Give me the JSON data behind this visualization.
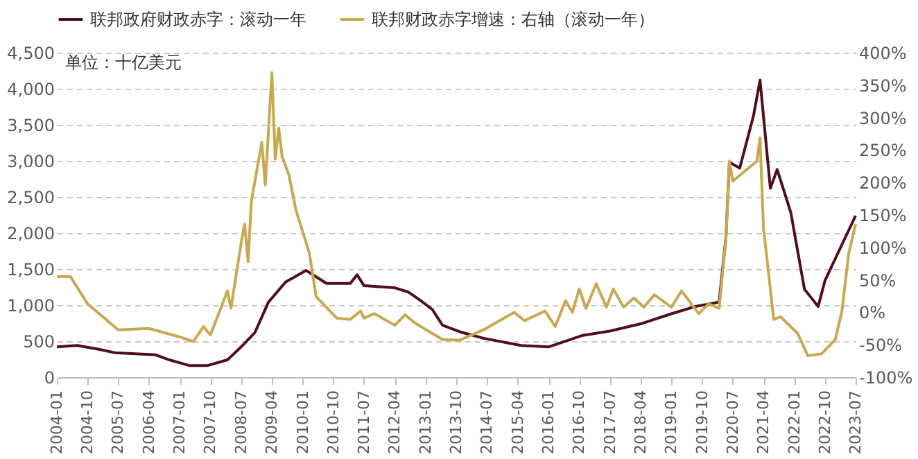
{
  "chart_data": {
    "type": "line",
    "annotations": [
      "单位：十亿美元"
    ],
    "xlim": [
      "2004-01",
      "2023-07"
    ],
    "xticks": [
      "2004-01",
      "2004-10",
      "2005-07",
      "2006-04",
      "2007-01",
      "2007-10",
      "2008-07",
      "2009-04",
      "2010-01",
      "2010-10",
      "2011-07",
      "2012-04",
      "2013-01",
      "2013-10",
      "2014-07",
      "2015-04",
      "2016-01",
      "2016-10",
      "2017-07",
      "2018-04",
      "2019-01",
      "2019-10",
      "2020-07",
      "2021-04",
      "2022-01",
      "2022-10",
      "2023-07"
    ],
    "ylim": [
      0,
      4500
    ],
    "yticks": [
      0,
      500,
      {
        "value": 1000,
        "label": "1,000"
      },
      {
        "value": 1500,
        "label": "1,500"
      },
      {
        "value": 2000,
        "label": "2,000"
      },
      {
        "value": 2500,
        "label": "2,500"
      },
      {
        "value": 3000,
        "label": "3,000"
      },
      {
        "value": 3500,
        "label": "3,500"
      },
      {
        "value": 4000,
        "label": "4,000"
      },
      {
        "value": 4500,
        "label": "4,500"
      }
    ],
    "y2lim": [
      -100,
      400
    ],
    "y2ticks": [
      {
        "value": -100,
        "label": "-100%"
      },
      {
        "value": -50,
        "label": "-50%"
      },
      {
        "value": 0,
        "label": "0%"
      },
      {
        "value": 50,
        "label": "50%"
      },
      {
        "value": 100,
        "label": "100%"
      },
      {
        "value": 150,
        "label": "150%"
      },
      {
        "value": 200,
        "label": "200%"
      },
      {
        "value": 250,
        "label": "250%"
      },
      {
        "value": 300,
        "label": "300%"
      },
      {
        "value": 350,
        "label": "350%"
      },
      {
        "value": 400,
        "label": "400%"
      }
    ],
    "grid": "y",
    "legend": "top",
    "line_style": "solid",
    "series": [
      {
        "name": "联邦政府财政赤字：滚动一年",
        "color": "#4f0f1a",
        "x": [
          "2004-01",
          "2004-07",
          "2005-01",
          "2005-06",
          "2006-06",
          "2006-10",
          "2007-04",
          "2007-09",
          "2008-03",
          "2008-07",
          "2008-11",
          "2009-03",
          "2009-08",
          "2010-02",
          "2010-08",
          "2011-03",
          "2011-05",
          "2011-07",
          "2012-04",
          "2012-08",
          "2012-11",
          "2013-03",
          "2013-06",
          "2013-11",
          "2014-06",
          "2015-05",
          "2016-01",
          "2016-11",
          "2017-07",
          "2018-04",
          "2019-01",
          "2019-08",
          "2020-03",
          "2020-05",
          "2020-06",
          "2020-09",
          "2021-01",
          "2021-03",
          "2021-06",
          "2021-08",
          "2021-12",
          "2022-04",
          "2022-08",
          "2022-10",
          "2023-04",
          "2023-07"
        ],
        "values": [
          420,
          440,
          390,
          340,
          310,
          240,
          160,
          160,
          240,
          420,
          620,
          1040,
          1320,
          1480,
          1300,
          1300,
          1420,
          1270,
          1240,
          1180,
          1080,
          940,
          720,
          630,
          540,
          440,
          420,
          580,
          640,
          740,
          880,
          980,
          1040,
          1940,
          2980,
          2900,
          3620,
          4120,
          2620,
          2880,
          2280,
          1220,
          980,
          1340,
          1940,
          2240
        ]
      },
      {
        "name": "联邦财政赤字增速：右轴（滚动一年）",
        "color": "#c8a850",
        "axis": "y2",
        "x": [
          "2004-01",
          "2004-05",
          "2004-10",
          "2005-07",
          "2006-04",
          "2007-01",
          "2007-05",
          "2007-08",
          "2007-10",
          "2008-03",
          "2008-04",
          "2008-07",
          "2008-08",
          "2008-09",
          "2008-10",
          "2008-11",
          "2009-01",
          "2009-02",
          "2009-04",
          "2009-05",
          "2009-06",
          "2009-07",
          "2009-09",
          "2009-11",
          "2010-03",
          "2010-05",
          "2010-11",
          "2011-03",
          "2011-06",
          "2011-07",
          "2011-10",
          "2012-04",
          "2012-07",
          "2012-10",
          "2013-06",
          "2013-11",
          "2014-06",
          "2015-03",
          "2015-06",
          "2015-12",
          "2016-03",
          "2016-06",
          "2016-08",
          "2016-10",
          "2016-12",
          "2017-03",
          "2017-06",
          "2017-08",
          "2017-11",
          "2018-02",
          "2018-05",
          "2018-08",
          "2019-01",
          "2019-04",
          "2019-09",
          "2019-12",
          "2020-03",
          "2020-05",
          "2020-06",
          "2020-07",
          "2021-02",
          "2021-03",
          "2021-04",
          "2021-05",
          "2021-07",
          "2021-09",
          "2022-02",
          "2022-05",
          "2022-09",
          "2023-01",
          "2023-03",
          "2023-05",
          "2023-07"
        ],
        "values": [
          55,
          55,
          13,
          -27,
          -25,
          -38,
          -45,
          -22,
          -35,
          33,
          6,
          107,
          136,
          78,
          173,
          202,
          262,
          196,
          369,
          236,
          284,
          240,
          211,
          158,
          91,
          24,
          -9,
          -11,
          2,
          -9,
          -2,
          -20,
          -4,
          -17,
          -42,
          -43,
          -27,
          0,
          -13,
          2,
          -22,
          18,
          0,
          36,
          6,
          44,
          8,
          36,
          8,
          22,
          8,
          27,
          8,
          33,
          -2,
          13,
          6,
          113,
          233,
          202,
          233,
          269,
          129,
          84,
          -11,
          -7,
          -33,
          -67,
          -64,
          -42,
          2,
          91,
          136
        ]
      }
    ]
  }
}
